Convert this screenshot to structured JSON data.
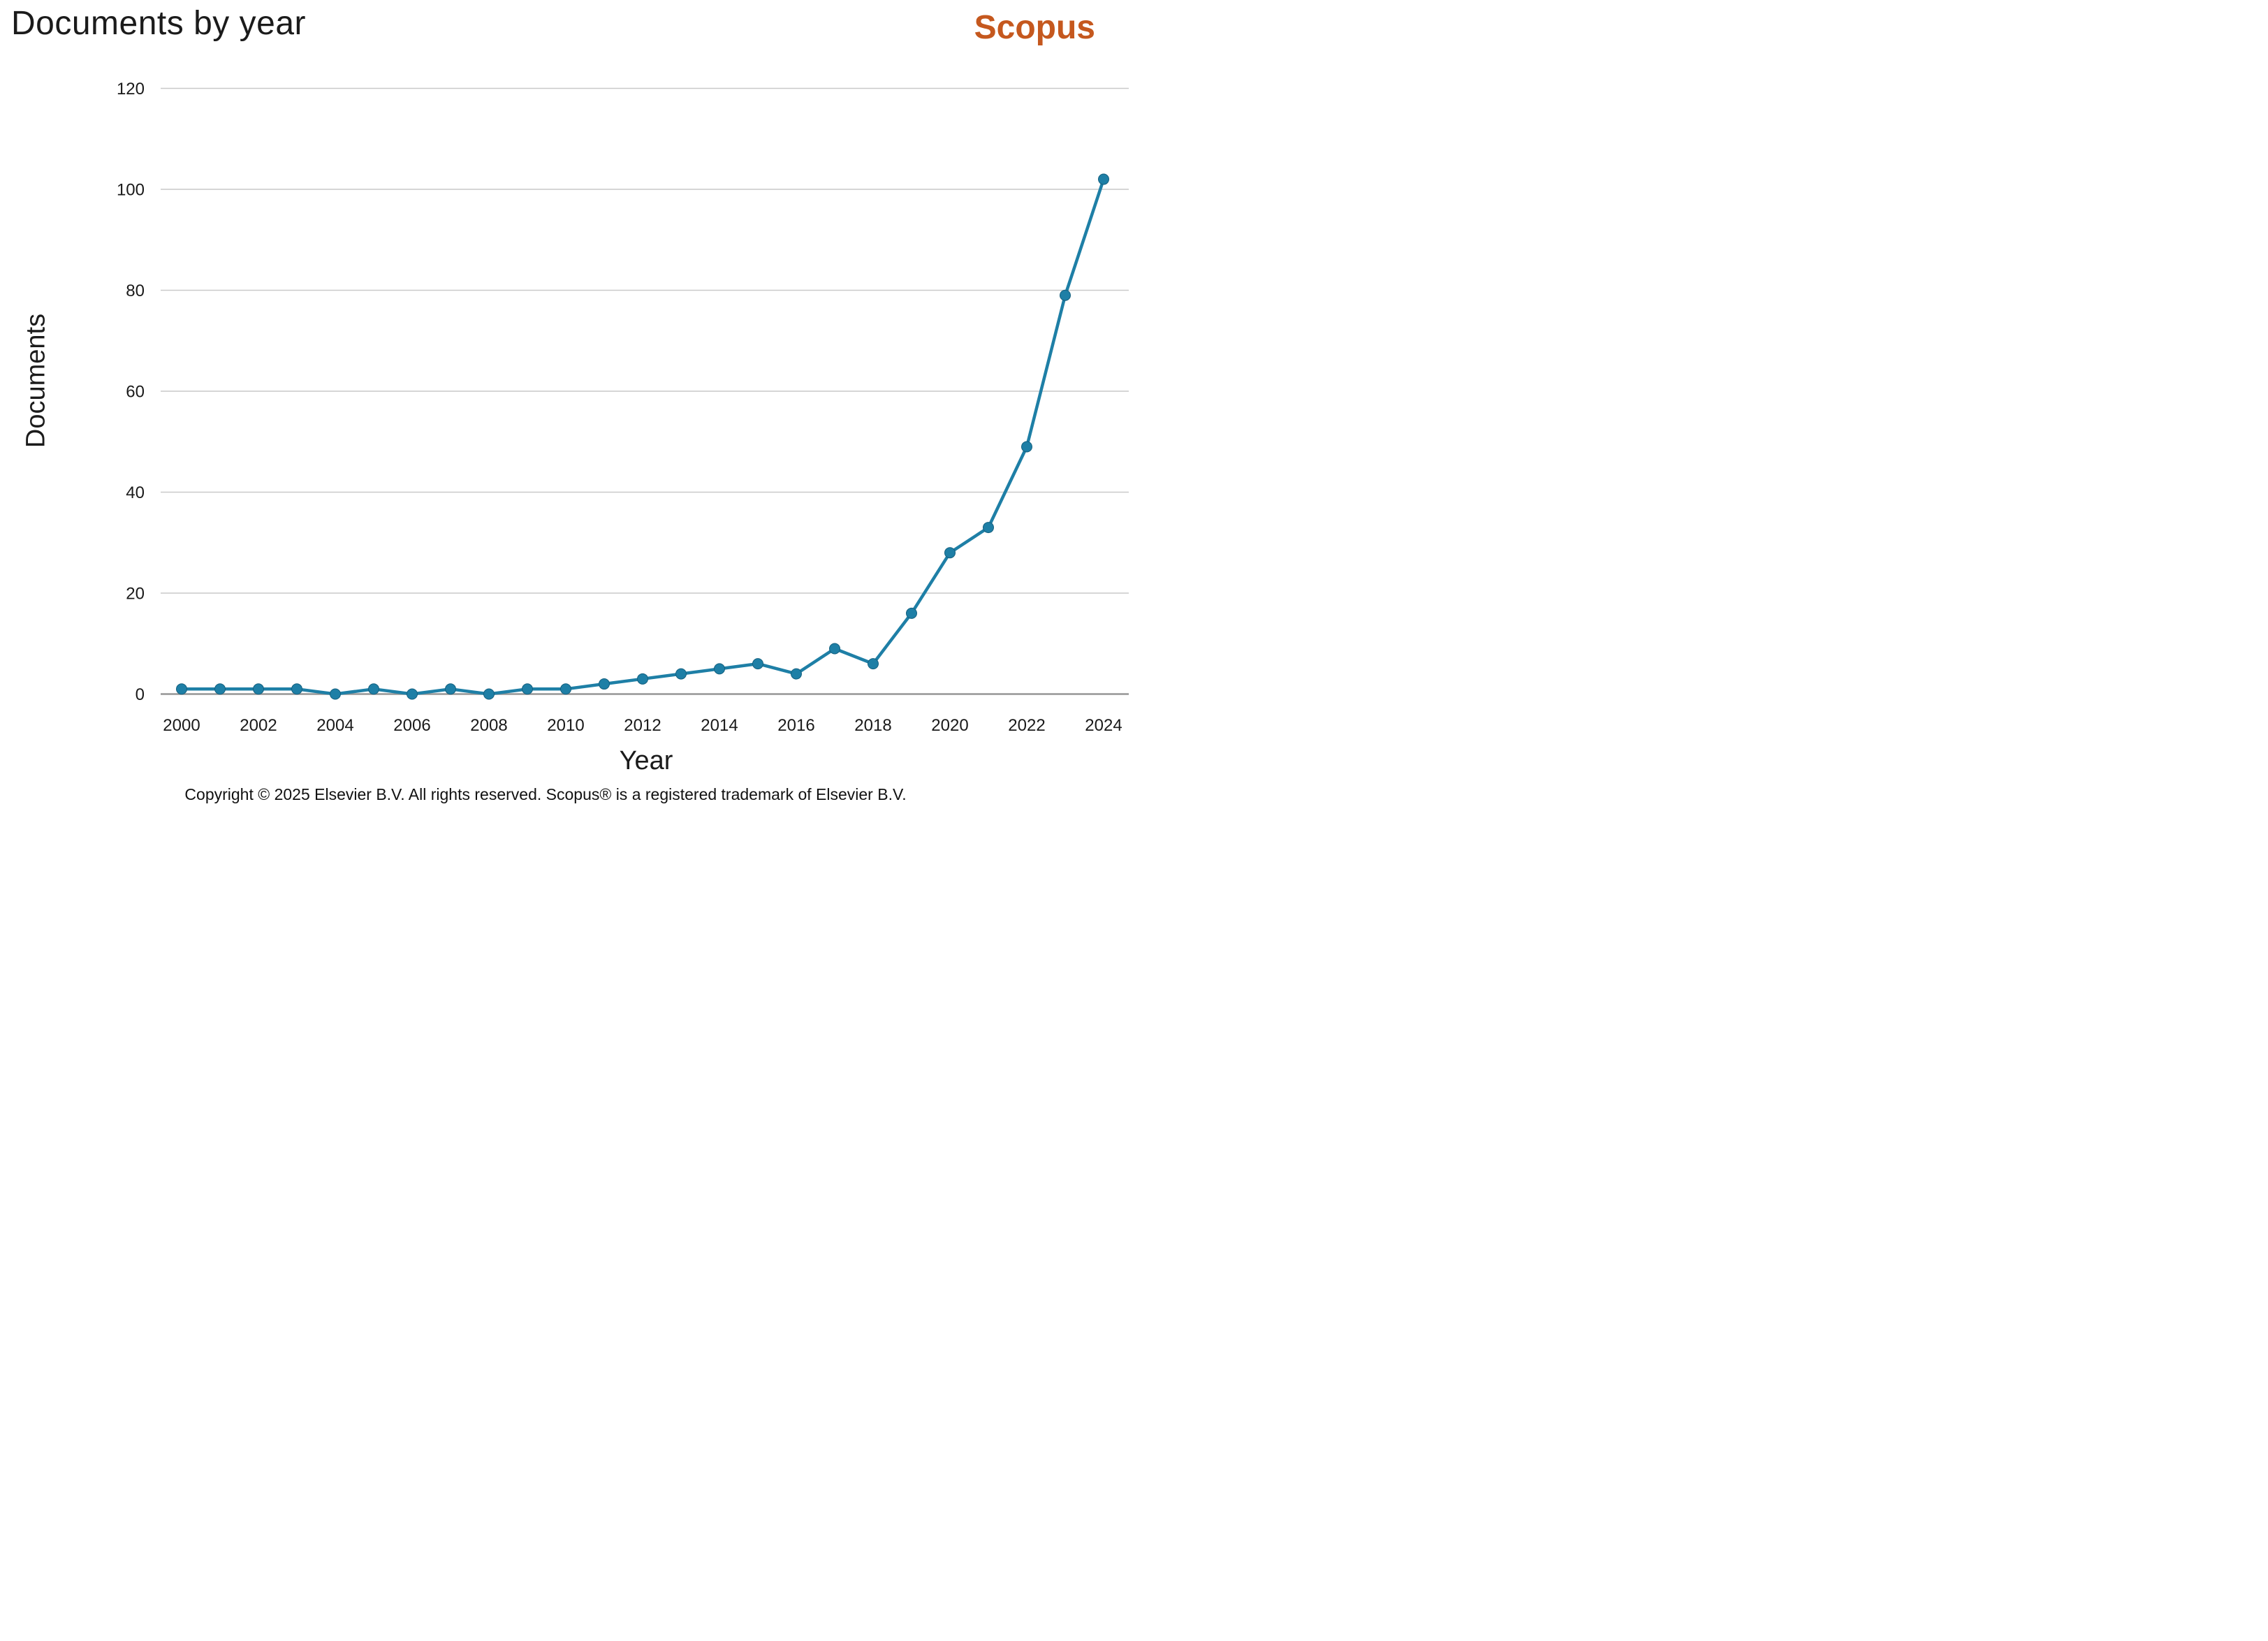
{
  "page": {
    "title": "Documents by year",
    "brand": "Scopus",
    "footer": "Copyright © 2025 Elsevier B.V. All rights reserved. Scopus® is a registered trademark of Elsevier B.V."
  },
  "colors": {
    "line": "#1E7FA6",
    "marker_stroke": "#14607F",
    "grid": "#C9C9C9",
    "axis": "#969696",
    "text": "#1A1A1A",
    "brand_orange": "#C5581E",
    "background": "#FFFFFF"
  },
  "chart_data": {
    "type": "line",
    "title": "Documents by year",
    "xlabel": "Year",
    "ylabel": "Documents",
    "x": [
      2000,
      2001,
      2002,
      2003,
      2004,
      2005,
      2006,
      2007,
      2008,
      2009,
      2010,
      2011,
      2012,
      2013,
      2014,
      2015,
      2016,
      2017,
      2018,
      2019,
      2020,
      2021,
      2022,
      2023,
      2024
    ],
    "series": [
      {
        "name": "Documents",
        "values": [
          1,
          1,
          1,
          1,
          0,
          1,
          0,
          1,
          0,
          1,
          1,
          2,
          3,
          4,
          5,
          6,
          4,
          9,
          6,
          16,
          28,
          33,
          49,
          79,
          102
        ]
      }
    ],
    "ylim": [
      0,
      120
    ],
    "yticks": [
      0,
      20,
      40,
      60,
      80,
      100,
      120
    ],
    "xticks": [
      2000,
      2002,
      2004,
      2006,
      2008,
      2010,
      2012,
      2014,
      2016,
      2018,
      2020,
      2022,
      2024
    ],
    "grid": true,
    "legend": "none",
    "marker": "circle"
  }
}
